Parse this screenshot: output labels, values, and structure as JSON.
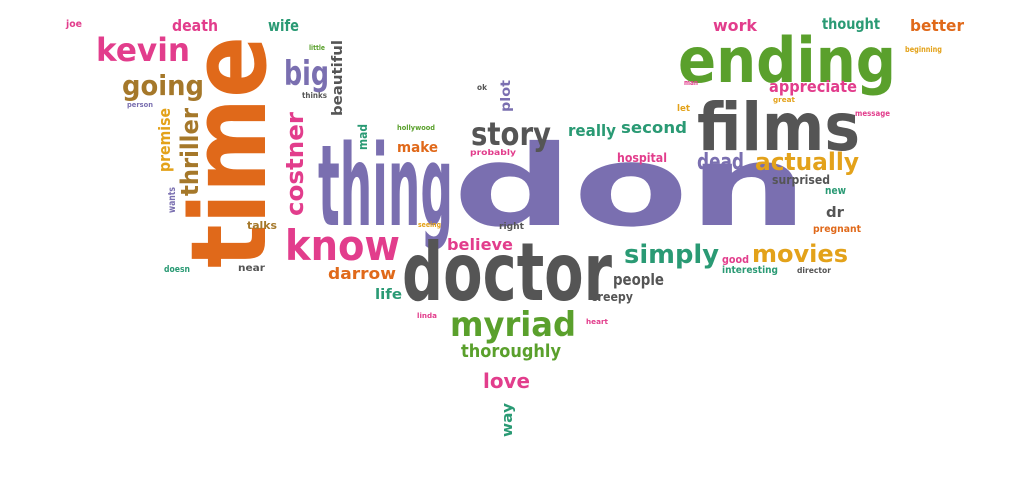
{
  "colors": {
    "purple": "#7a6fb0",
    "gray": "#555555",
    "green": "#5aa02c",
    "orange": "#e0691a",
    "pink": "#e23d8c",
    "teal": "#2a9a74",
    "gold": "#e3a21a",
    "brown": "#a5782a",
    "background": "#ffffff"
  },
  "words": [
    {
      "text": "thing",
      "color": "purple"
    },
    {
      "text": "don",
      "color": "purple"
    },
    {
      "text": "time",
      "color": "orange"
    },
    {
      "text": "doctor",
      "color": "gray"
    },
    {
      "text": "ending",
      "color": "green"
    },
    {
      "text": "films",
      "color": "gray"
    },
    {
      "text": "know",
      "color": "pink"
    },
    {
      "text": "kevin",
      "color": "pink"
    },
    {
      "text": "myriad",
      "color": "green"
    },
    {
      "text": "story",
      "color": "gray"
    },
    {
      "text": "costner",
      "color": "pink"
    },
    {
      "text": "going",
      "color": "brown"
    },
    {
      "text": "big",
      "color": "purple"
    },
    {
      "text": "thriller",
      "color": "brown"
    },
    {
      "text": "actually",
      "color": "gold"
    },
    {
      "text": "movies",
      "color": "gold"
    },
    {
      "text": "simply",
      "color": "teal"
    },
    {
      "text": "dead",
      "color": "purple"
    },
    {
      "text": "appreciate",
      "color": "pink"
    },
    {
      "text": "thoroughly",
      "color": "green"
    },
    {
      "text": "love",
      "color": "pink"
    },
    {
      "text": "premise",
      "color": "gold"
    },
    {
      "text": "death",
      "color": "pink"
    },
    {
      "text": "wife",
      "color": "teal"
    },
    {
      "text": "work",
      "color": "pink"
    },
    {
      "text": "thought",
      "color": "teal"
    },
    {
      "text": "better",
      "color": "orange"
    },
    {
      "text": "darrow",
      "color": "orange"
    },
    {
      "text": "believe",
      "color": "pink"
    },
    {
      "text": "people",
      "color": "gray"
    },
    {
      "text": "really",
      "color": "teal"
    },
    {
      "text": "second",
      "color": "teal"
    },
    {
      "text": "make",
      "color": "orange"
    },
    {
      "text": "beautiful",
      "color": "gray"
    },
    {
      "text": "plot",
      "color": "purple"
    },
    {
      "text": "mad",
      "color": "teal"
    },
    {
      "text": "life",
      "color": "teal"
    },
    {
      "text": "creepy",
      "color": "gray"
    },
    {
      "text": "hospital",
      "color": "pink"
    },
    {
      "text": "surprised",
      "color": "gray"
    },
    {
      "text": "new",
      "color": "teal"
    },
    {
      "text": "dr",
      "color": "gray"
    },
    {
      "text": "pregnant",
      "color": "orange"
    },
    {
      "text": "good",
      "color": "pink"
    },
    {
      "text": "interesting",
      "color": "teal"
    },
    {
      "text": "director",
      "color": "gray"
    },
    {
      "text": "talks",
      "color": "brown"
    },
    {
      "text": "wants",
      "color": "purple"
    },
    {
      "text": "near",
      "color": "gray"
    },
    {
      "text": "doesn",
      "color": "teal"
    },
    {
      "text": "way",
      "color": "teal"
    },
    {
      "text": "joe",
      "color": "pink"
    },
    {
      "text": "little",
      "color": "green"
    },
    {
      "text": "thinks",
      "color": "gray"
    },
    {
      "text": "person",
      "color": "purple"
    },
    {
      "text": "hollywood",
      "color": "green"
    },
    {
      "text": "probably",
      "color": "pink"
    },
    {
      "text": "seeing",
      "color": "gold"
    },
    {
      "text": "right",
      "color": "gray"
    },
    {
      "text": "ok",
      "color": "gray"
    },
    {
      "text": "man",
      "color": "pink"
    },
    {
      "text": "great",
      "color": "gold"
    },
    {
      "text": "let",
      "color": "gold"
    },
    {
      "text": "message",
      "color": "pink"
    },
    {
      "text": "beginning",
      "color": "gold"
    },
    {
      "text": "linda",
      "color": "pink"
    },
    {
      "text": "heart",
      "color": "pink"
    }
  ]
}
